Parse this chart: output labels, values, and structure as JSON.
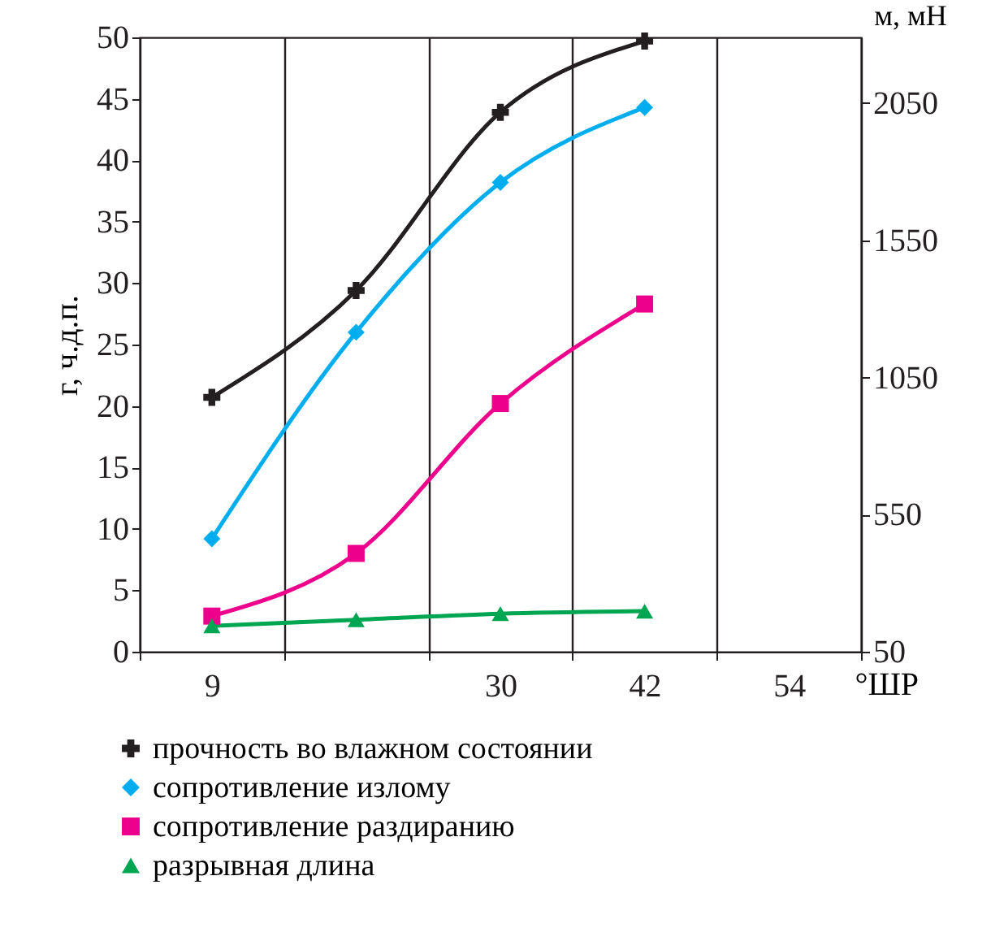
{
  "chart_data": {
    "type": "line",
    "categories": [
      "9",
      null,
      "30",
      "42",
      "54"
    ],
    "xlabel": "°ШР",
    "ylabel": "г, ч.д.п.",
    "y2label": "м, мН",
    "ylim": [
      0,
      50
    ],
    "yticks": [
      0,
      5,
      10,
      15,
      20,
      25,
      30,
      35,
      40,
      45,
      50
    ],
    "y2lim": [
      50,
      2290
    ],
    "y2ticks": [
      50,
      550,
      1050,
      1550,
      2050
    ],
    "grid": "x",
    "legend": "bottom",
    "series": [
      {
        "name": "прочность во влажном состоянии",
        "color": "#231f20",
        "marker": "cross",
        "values": [
          20.7,
          29.4,
          43.9,
          49.7,
          null
        ]
      },
      {
        "name": "сопротивление излому",
        "color": "#00aeef",
        "marker": "diamond",
        "values": [
          9.2,
          26.0,
          38.2,
          44.3,
          null
        ]
      },
      {
        "name": "сопротивление раздиранию",
        "color": "#ec008c",
        "marker": "square",
        "values": [
          2.9,
          8.0,
          20.2,
          28.3,
          null
        ]
      },
      {
        "name": "разрывная длина",
        "color": "#00a651",
        "marker": "triangle",
        "values": [
          2.1,
          2.6,
          3.1,
          3.3,
          null
        ]
      }
    ]
  }
}
